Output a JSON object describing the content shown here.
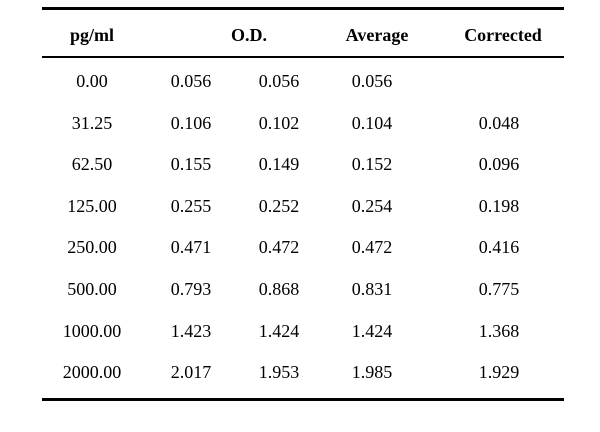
{
  "table": {
    "headers": {
      "concentration": "pg/ml",
      "od": "O.D.",
      "average": "Average",
      "corrected": "Corrected"
    },
    "rows": [
      [
        "0.00",
        "0.056",
        "0.056",
        "0.056",
        ""
      ],
      [
        "31.25",
        "0.106",
        "0.102",
        "0.104",
        "0.048"
      ],
      [
        "62.50",
        "0.155",
        "0.149",
        "0.152",
        "0.096"
      ],
      [
        "125.00",
        "0.255",
        "0.252",
        "0.254",
        "0.198"
      ],
      [
        "250.00",
        "0.471",
        "0.472",
        "0.472",
        "0.416"
      ],
      [
        "500.00",
        "0.793",
        "0.868",
        "0.831",
        "0.775"
      ],
      [
        "1000.00",
        "1.423",
        "1.424",
        "1.424",
        "1.368"
      ],
      [
        "2000.00",
        "2.017",
        "1.953",
        "1.985",
        "1.929"
      ]
    ]
  }
}
